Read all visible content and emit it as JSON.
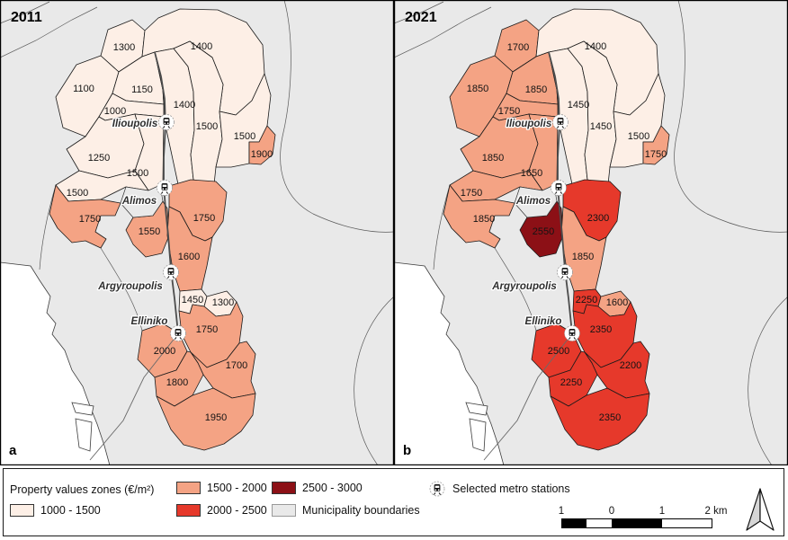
{
  "panels": [
    {
      "year": "2011",
      "corner": "a",
      "zones": {
        "z1300": "1300",
        "z1400top": "1400",
        "z1100": "1100",
        "z1150": "1150",
        "z1000": "1000",
        "z1400mid": "1400",
        "z1500mid": "1500",
        "z1500right": "1500",
        "z1900": "1900",
        "z1250": "1250",
        "z1500low": "1500",
        "z1500left": "1500",
        "zAlimos": "1750",
        "z1550": "1550",
        "z1750r": "1750",
        "z1600": "1600",
        "z1450": "1450",
        "z1300low": "1300",
        "z1750low": "1750",
        "z2000": "2000",
        "z1700": "1700",
        "z1800": "1800",
        "z1950": "1950"
      }
    },
    {
      "year": "2021",
      "corner": "b",
      "zones": {
        "z1300": "1700",
        "z1400top": "1400",
        "z1100": "1850",
        "z1150": "1850",
        "z1000": "1750",
        "z1400mid": "1450",
        "z1500mid": "1450",
        "z1500right": "1500",
        "z1900": "1750",
        "z1250": "1850",
        "z1500low": "1650",
        "z1500left": "1750",
        "zAlimos": "1850",
        "z1550": "2550",
        "z1750r": "2300",
        "z1600": "1850",
        "z1450": "2250",
        "z1300low": "1600",
        "z1750low": "2350",
        "z2000": "2500",
        "z1700": "2200",
        "z1800": "2250",
        "z1950": "2350"
      }
    }
  ],
  "map": {
    "municipality_labels": [
      "Ilioupolis",
      "Alimos",
      "Argyroupolis",
      "Elliniko"
    ],
    "municipality_fill": "#e9e9e9",
    "sea_fill": "#ffffff"
  },
  "legend": {
    "title": "Property values zones (€/m²)",
    "classes": [
      {
        "label": "1000 - 1500",
        "color": "#fdefe6"
      },
      {
        "label": "1500 - 2000",
        "color": "#f4a384"
      },
      {
        "label": "2000 - 2500",
        "color": "#e6392b"
      },
      {
        "label": "2500 - 3000",
        "color": "#8c1016"
      }
    ],
    "municipality_boundaries_label": "Municipality boundaries",
    "metro_label": "Selected metro stations",
    "scalebar": {
      "labels": [
        "1",
        "0",
        "1",
        "2 km"
      ]
    }
  }
}
